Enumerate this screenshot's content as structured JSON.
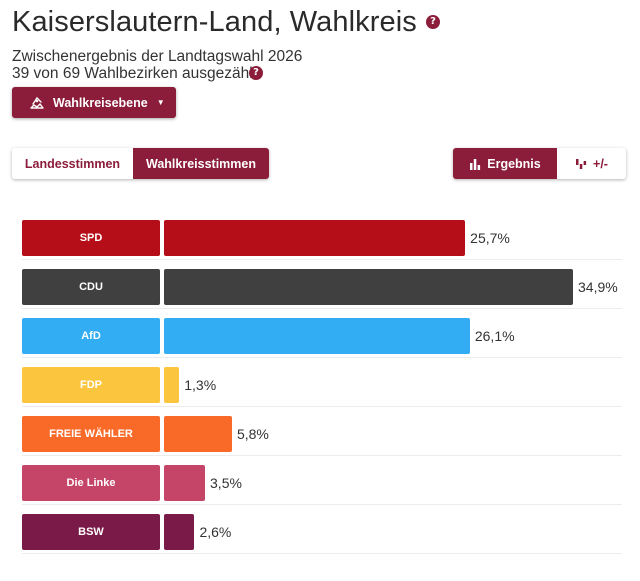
{
  "header": {
    "title": "Kaiserslautern-Land, Wahlkreis",
    "subtitle": "Zwischenergebnis der Landtagswahl 2026",
    "status": "39 von 69 Wahlbezirken ausgezählt"
  },
  "level_dropdown": {
    "label": "Wahlkreisebene"
  },
  "vote_tabs": {
    "landesstimmen": "Landesstimmen",
    "wahlkreisstimmen": "Wahlkreisstimmen"
  },
  "view_toggle": {
    "ergebnis": "Ergebnis",
    "diff": "+/-"
  },
  "colors": {
    "accent": "#8b1c3a"
  },
  "chart_data": {
    "type": "bar",
    "orientation": "horizontal",
    "categories": [
      "SPD",
      "CDU",
      "AfD",
      "FDP",
      "FREIE WÄHLER",
      "Die Linke",
      "BSW"
    ],
    "values": [
      25.7,
      34.9,
      26.1,
      1.3,
      5.8,
      3.5,
      2.6
    ],
    "value_labels": [
      "25,7%",
      "34,9%",
      "26,1%",
      "1,3%",
      "5,8%",
      "3,5%",
      "2,6%"
    ],
    "colors": [
      "#b50e18",
      "#404040",
      "#32acf3",
      "#fcc53e",
      "#f96a29",
      "#c44567",
      "#7a1a48"
    ],
    "xlim": [
      0,
      34.9
    ]
  }
}
